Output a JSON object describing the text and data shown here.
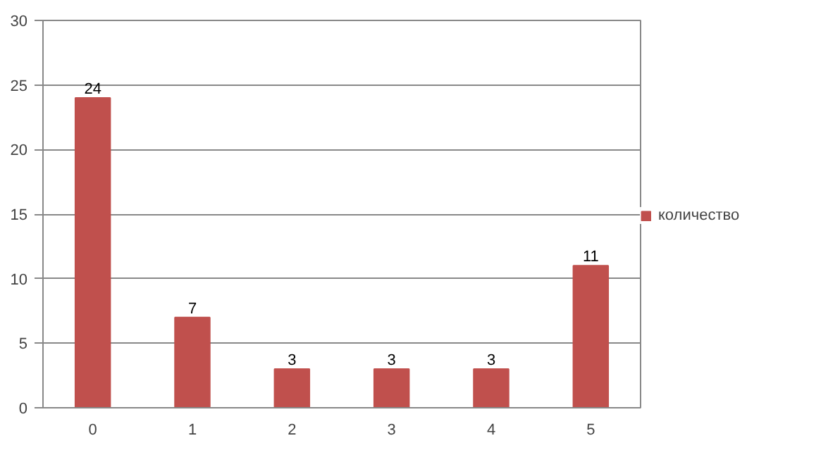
{
  "chart_data": {
    "type": "bar",
    "categories": [
      "0",
      "1",
      "2",
      "3",
      "4",
      "5"
    ],
    "series": [
      {
        "name": "количество",
        "color": "#c0504d",
        "values": [
          24,
          7,
          3,
          3,
          3,
          11
        ]
      }
    ],
    "ylim": [
      0,
      30
    ],
    "yticks": [
      0,
      5,
      10,
      15,
      20,
      25,
      30
    ],
    "grid": "y",
    "legend": "right",
    "data_labels": true
  }
}
